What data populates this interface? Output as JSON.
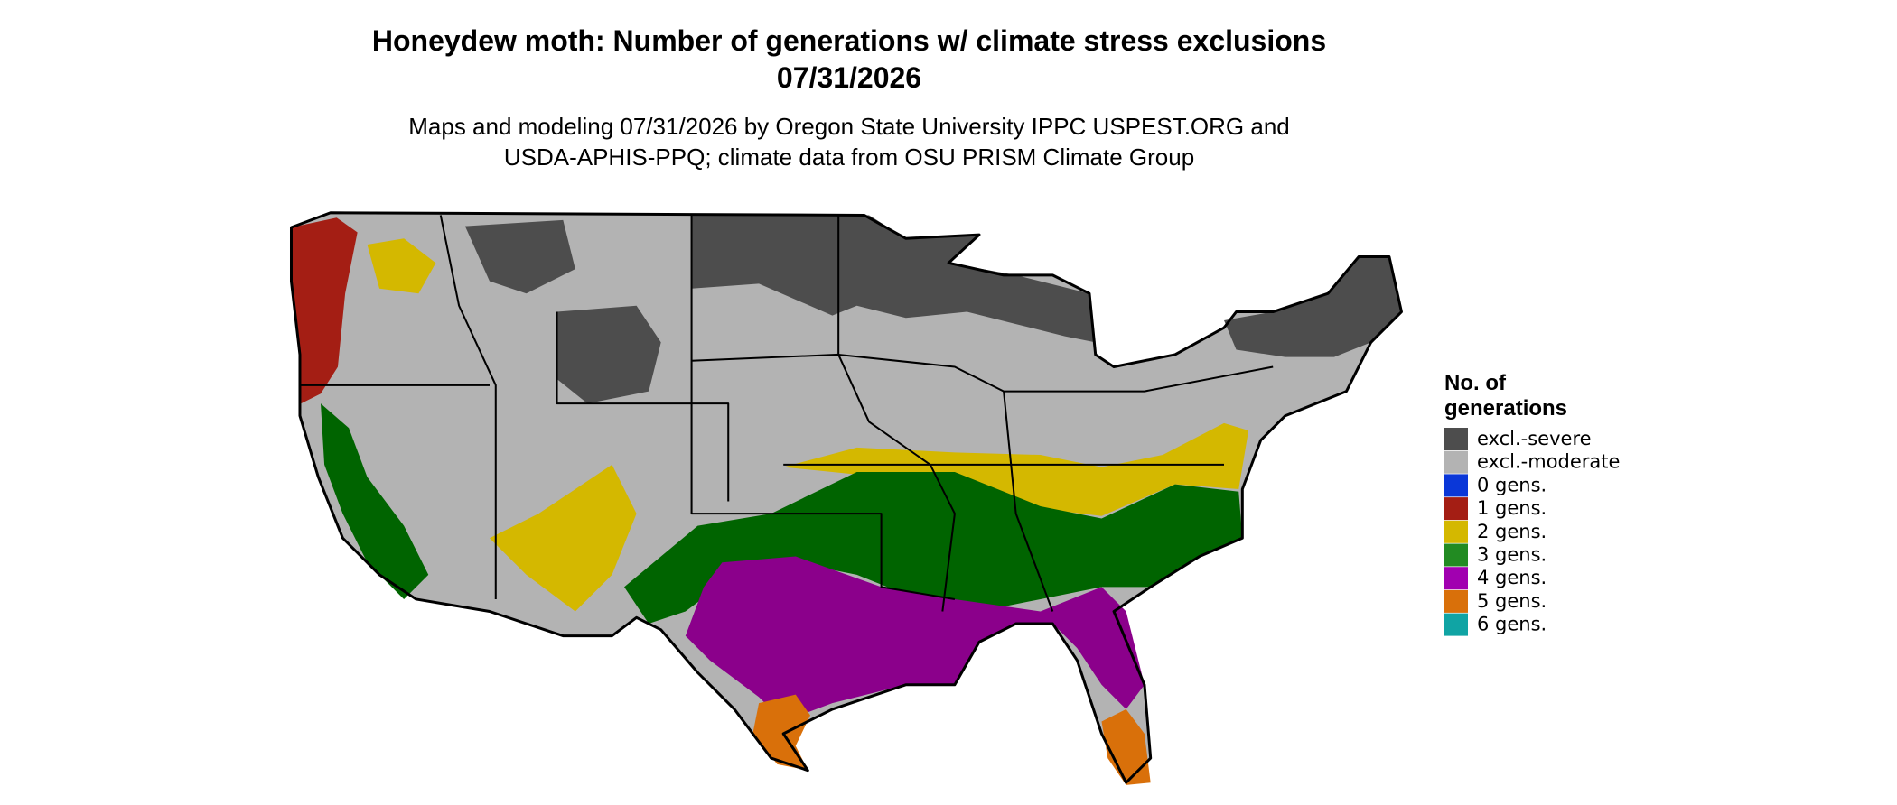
{
  "title": [
    "Honeydew moth: Number of generations w/ climate stress exclusions",
    "07/31/2026"
  ],
  "subtitle": [
    "Maps and modeling 07/31/2026 by Oregon State University IPPC USPEST.ORG and",
    "USDA-APHIS-PPQ; climate data from OSU PRISM Climate Group"
  ],
  "legend": {
    "title": [
      "No. of",
      "generations"
    ],
    "items": [
      {
        "label": "excl.-severe",
        "color": "#4d4d4d"
      },
      {
        "label": "excl.-moderate",
        "color": "#b3b3b3"
      },
      {
        "label": "0 gens.",
        "color": "#0a37d8"
      },
      {
        "label": "1 gens.",
        "color": "#a41e14"
      },
      {
        "label": "2 gens.",
        "color": "#d4b800"
      },
      {
        "label": "3 gens.",
        "color": "#228b22"
      },
      {
        "label": "4 gens.",
        "color": "#a100b0"
      },
      {
        "label": "5 gens.",
        "color": "#d9700a"
      },
      {
        "label": "6 gens.",
        "color": "#10a4a4"
      }
    ]
  }
}
